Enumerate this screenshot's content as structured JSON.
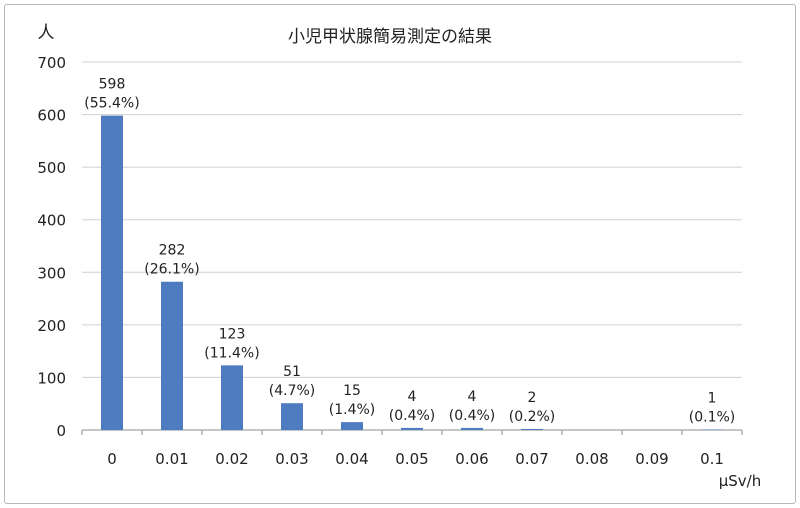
{
  "chart_data": {
    "type": "bar",
    "title": "小児甲状腺簡易測定の結果",
    "ylabel": "人",
    "xlabel": "μSv/h",
    "ylim": [
      0,
      700
    ],
    "yticks": [
      0,
      100,
      200,
      300,
      400,
      500,
      600,
      700
    ],
    "grid": true,
    "categories": [
      "0",
      "0.01",
      "0.02",
      "0.03",
      "0.04",
      "0.05",
      "0.06",
      "0.07",
      "0.08",
      "0.09",
      "0.1"
    ],
    "values": [
      598,
      282,
      123,
      51,
      15,
      4,
      4,
      2,
      0,
      0,
      1
    ],
    "data_labels": [
      [
        "598",
        "(55.4%)"
      ],
      [
        "282",
        "(26.1%)"
      ],
      [
        "123",
        "(11.4%)"
      ],
      [
        "51",
        "(4.7%)"
      ],
      [
        "15",
        "(1.4%)"
      ],
      [
        "4",
        "(0.4%)"
      ],
      [
        "4",
        "(0.4%)"
      ],
      [
        "2",
        "(0.2%)"
      ],
      null,
      null,
      [
        "1",
        "(0.1%)"
      ]
    ],
    "bar_color": "#4f7cc0"
  }
}
